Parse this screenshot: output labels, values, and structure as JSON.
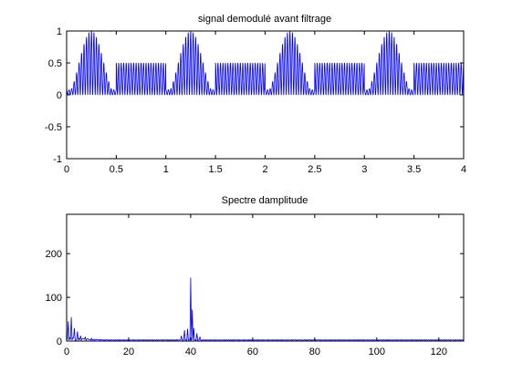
{
  "figure": {
    "background": "#ffffff",
    "line_color": "#0000ff"
  },
  "chart_data": [
    {
      "type": "line",
      "title": "signal demodulé avant filtrage",
      "xlabel": "",
      "ylabel": "",
      "xlim": [
        0,
        4
      ],
      "ylim": [
        -1,
        1
      ],
      "xticks": [
        0,
        0.5,
        1,
        1.5,
        2,
        2.5,
        3,
        3.5,
        4
      ],
      "xtick_labels": [
        "0",
        "0.5",
        "1",
        "1.5",
        "2",
        "2.5",
        "3",
        "3.5",
        "4"
      ],
      "yticks": [
        -1,
        -0.5,
        0,
        0.5,
        1
      ],
      "ytick_labels": [
        "-1",
        "-0.5",
        "0",
        "0.5",
        "1"
      ],
      "grid": false,
      "legend": "none",
      "series": [
        {
          "color": "#0000ff",
          "description": "rectified oscillation, peak envelope cycles over 1 s: raised-cosine lobe to 1.0 (0 to 0.5), then flat at 0.5 (0.5 to 1.0)",
          "carrier_frequency": 40,
          "envelope_period": 1.0,
          "lobe_peak": 1.0,
          "plateau_level": 0.5,
          "min_value": 0
        }
      ]
    },
    {
      "type": "line",
      "title": "Spectre damplitude",
      "xlabel": "",
      "ylabel": "",
      "xlim": [
        0,
        128
      ],
      "ylim": [
        0,
        290
      ],
      "xticks": [
        0,
        20,
        40,
        60,
        80,
        100,
        120
      ],
      "xtick_labels": [
        "0",
        "20",
        "40",
        "60",
        "80",
        "100",
        "120"
      ],
      "yticks": [
        0,
        100,
        200
      ],
      "ytick_labels": [
        "0",
        "100",
        "200"
      ],
      "grid": false,
      "legend": "none",
      "series": [
        {
          "color": "#0000ff",
          "peaks": [
            {
              "x": 0.5,
              "y": 45
            },
            {
              "x": 1.5,
              "y": 55
            },
            {
              "x": 2.5,
              "y": 30
            },
            {
              "x": 3.5,
              "y": 22
            },
            {
              "x": 4.5,
              "y": 12
            },
            {
              "x": 6,
              "y": 9
            },
            {
              "x": 8,
              "y": 6
            },
            {
              "x": 37,
              "y": 12
            },
            {
              "x": 38,
              "y": 25
            },
            {
              "x": 39,
              "y": 28
            },
            {
              "x": 40,
              "y": 145
            },
            {
              "x": 40.5,
              "y": 72
            },
            {
              "x": 41,
              "y": 30
            },
            {
              "x": 42,
              "y": 18
            },
            {
              "x": 43,
              "y": 10
            }
          ],
          "noise_floor": 3
        }
      ]
    }
  ]
}
